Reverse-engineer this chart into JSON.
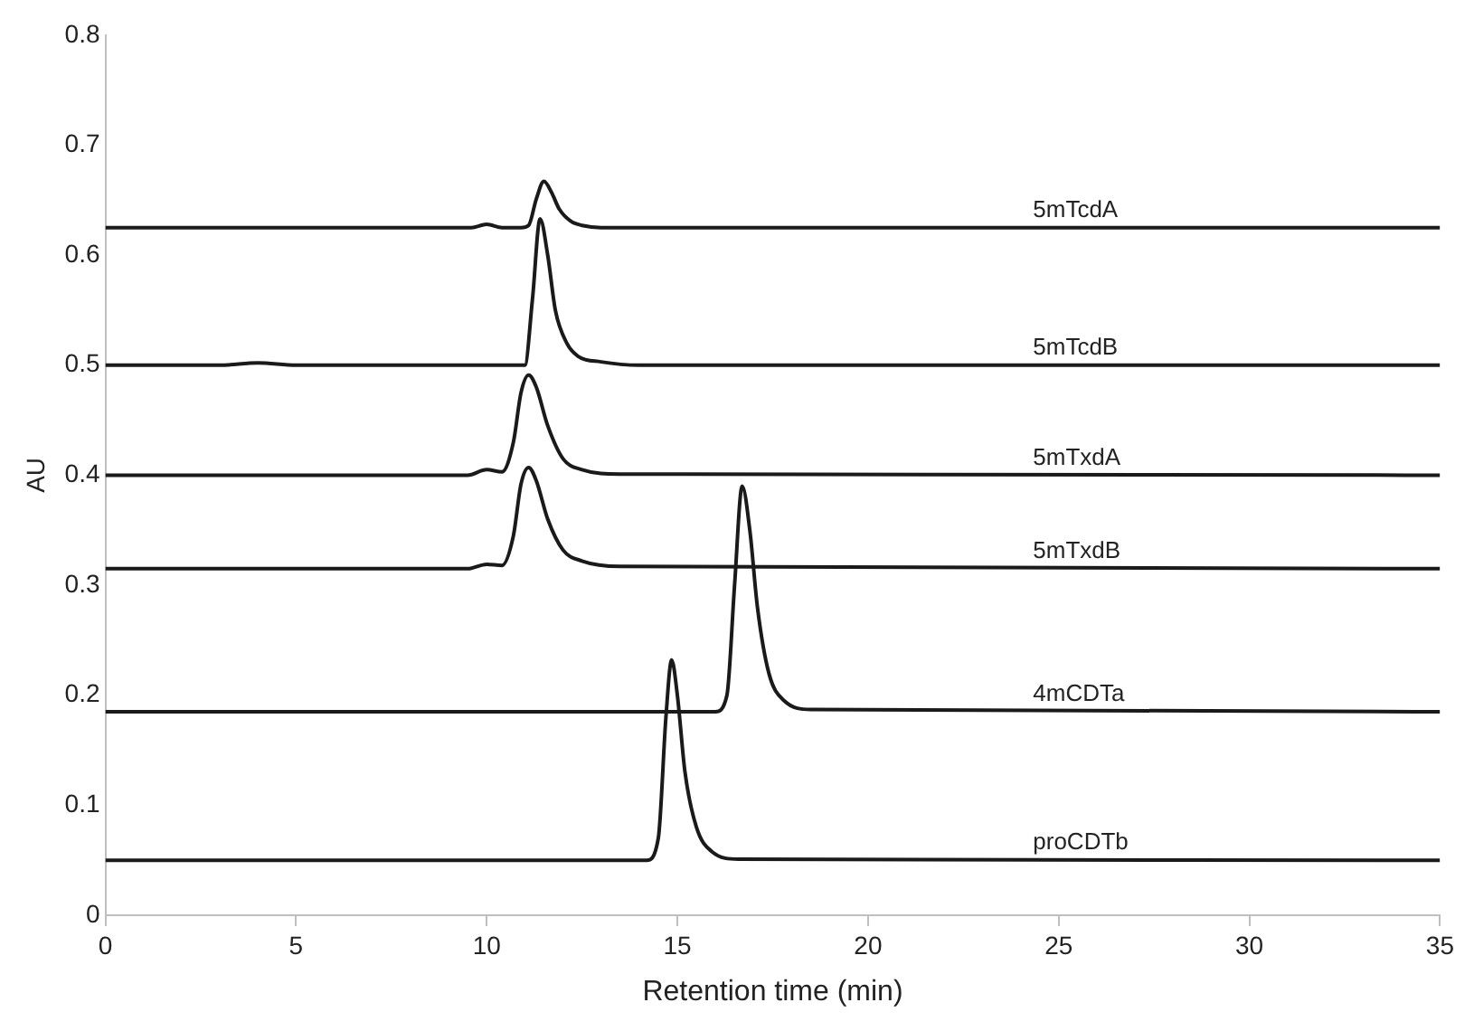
{
  "chart_data": {
    "type": "line",
    "xlabel": "Retention time (min)",
    "ylabel": "AU",
    "xlim": [
      0,
      35
    ],
    "xticks": [
      0,
      5,
      10,
      15,
      20,
      25,
      30,
      35
    ],
    "ylim": [
      0,
      0.8
    ],
    "yticks": [
      0,
      0.1,
      0.2,
      0.3,
      0.4,
      0.5,
      0.6,
      0.7,
      0.8
    ],
    "grid": false,
    "legend": false,
    "marker": "none",
    "line_style": "solid",
    "series": [
      {
        "name": "5mTcdA",
        "color": "#1a1a1a",
        "x": [
          0,
          9.6,
          10,
          10.4,
          10.9,
          11.1,
          11.3,
          11.5,
          11.7,
          11.9,
          12.2,
          12.5,
          13,
          35
        ],
        "values": [
          0.625,
          0.625,
          0.628,
          0.625,
          0.625,
          0.627,
          0.651,
          0.667,
          0.657,
          0.642,
          0.631,
          0.627,
          0.625,
          0.625
        ]
      },
      {
        "name": "5mTcdB",
        "color": "#1a1a1a",
        "x": [
          0,
          3,
          4,
          5,
          11,
          11.2,
          11.4,
          11.6,
          11.8,
          12.1,
          12.4,
          13,
          14,
          35
        ],
        "values": [
          0.5,
          0.5,
          0.502,
          0.5,
          0.5,
          0.56,
          0.633,
          0.6,
          0.55,
          0.52,
          0.508,
          0.503,
          0.5,
          0.5
        ]
      },
      {
        "name": "5mTxdA",
        "color": "#1a1a1a",
        "x": [
          0,
          9.5,
          10,
          10.4,
          10.7,
          10.9,
          11.1,
          11.3,
          11.6,
          12,
          12.5,
          13.5,
          35
        ],
        "values": [
          0.4,
          0.4,
          0.405,
          0.403,
          0.43,
          0.475,
          0.491,
          0.48,
          0.445,
          0.415,
          0.405,
          0.401,
          0.4
        ]
      },
      {
        "name": "5mTxdB",
        "color": "#1a1a1a",
        "x": [
          0,
          9.5,
          10,
          10.4,
          10.7,
          10.9,
          11.1,
          11.3,
          11.6,
          12,
          12.5,
          13.5,
          35
        ],
        "values": [
          0.315,
          0.315,
          0.319,
          0.318,
          0.345,
          0.392,
          0.407,
          0.395,
          0.36,
          0.332,
          0.322,
          0.317,
          0.315
        ]
      },
      {
        "name": "4mCDTa",
        "color": "#1a1a1a",
        "x": [
          0,
          16,
          16.3,
          16.5,
          16.7,
          16.9,
          17.1,
          17.4,
          17.8,
          18.5,
          35
        ],
        "values": [
          0.185,
          0.185,
          0.2,
          0.3,
          0.39,
          0.35,
          0.28,
          0.22,
          0.195,
          0.187,
          0.185
        ]
      },
      {
        "name": "proCDTb",
        "color": "#1a1a1a",
        "x": [
          0,
          14.2,
          14.5,
          14.7,
          14.85,
          15,
          15.2,
          15.5,
          15.9,
          16.6,
          35
        ],
        "values": [
          0.05,
          0.05,
          0.07,
          0.18,
          0.232,
          0.2,
          0.13,
          0.08,
          0.058,
          0.051,
          0.05
        ]
      }
    ]
  }
}
